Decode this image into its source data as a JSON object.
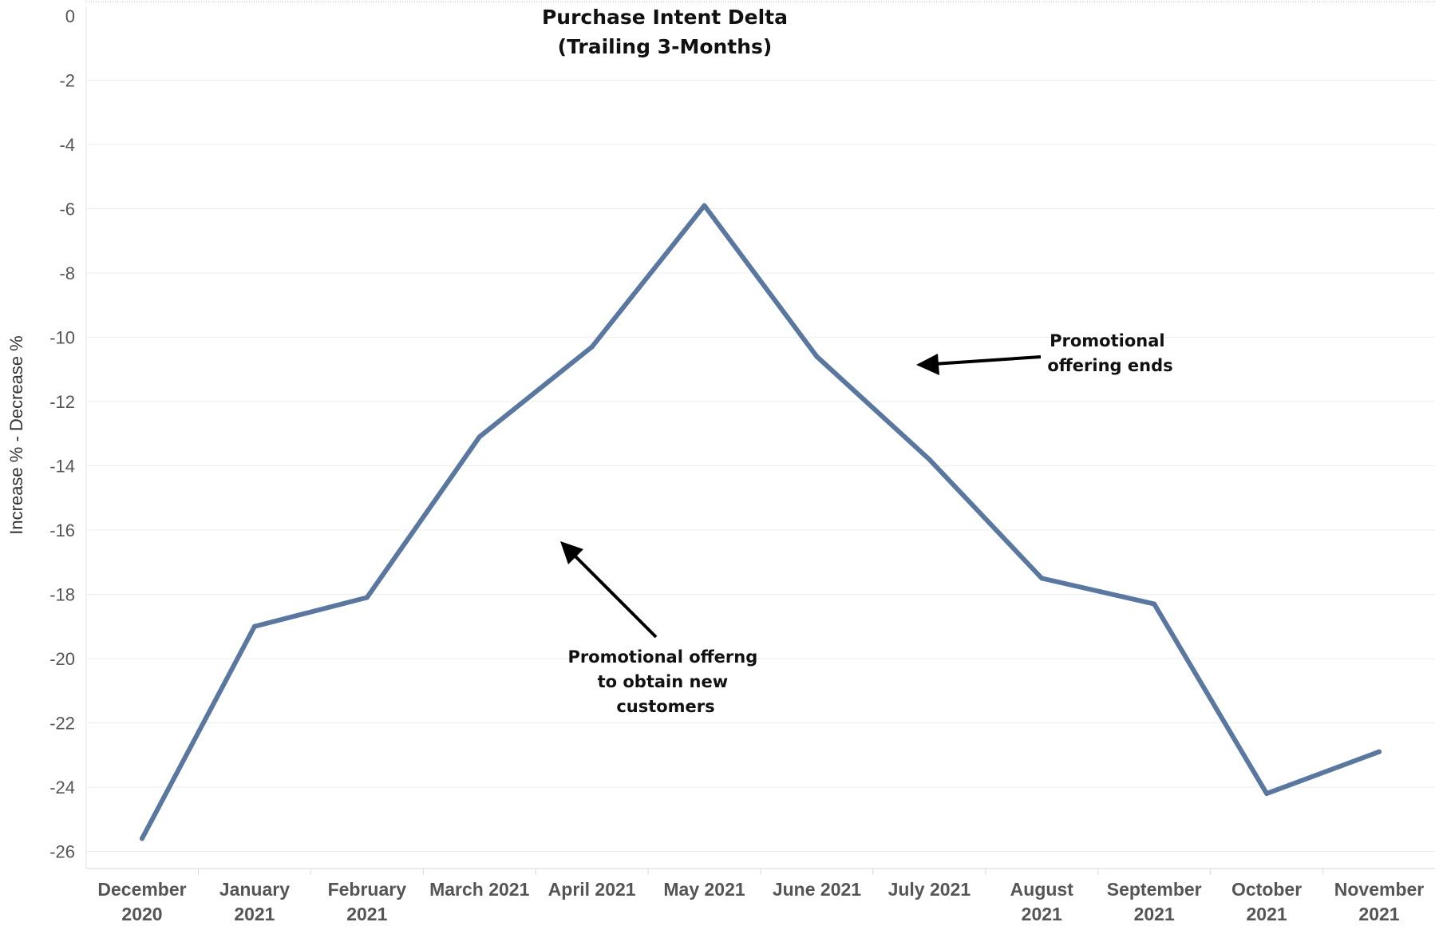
{
  "chart_data": {
    "type": "line",
    "title": "Purchase Intent Delta",
    "subtitle": "(Trailing 3-Months)",
    "xlabel": "",
    "ylabel": "Increase % - Decrease %",
    "ylim": [
      -27.0,
      0
    ],
    "yticks": [
      0,
      -2,
      -4,
      -6,
      -8,
      -10,
      -12,
      -14,
      -16,
      -18,
      -20,
      -22,
      -24,
      -26
    ],
    "categories": [
      [
        "December",
        "2020"
      ],
      [
        "January",
        "2021"
      ],
      [
        "February",
        "2021"
      ],
      [
        "March 2021"
      ],
      [
        "April 2021"
      ],
      [
        "May 2021"
      ],
      [
        "June 2021"
      ],
      [
        "July 2021"
      ],
      [
        "August",
        "2021"
      ],
      [
        "September",
        "2021"
      ],
      [
        "October",
        "2021"
      ],
      [
        "November",
        "2021"
      ]
    ],
    "series": [
      {
        "name": "",
        "color": "#5a77a0",
        "values": [
          -25.6,
          -19.0,
          -18.1,
          -13.1,
          -10.3,
          -5.9,
          -10.6,
          -13.8,
          -17.5,
          -18.3,
          -24.2,
          -22.9
        ]
      }
    ],
    "grid": true,
    "annotations": [
      {
        "lines": [
          "Promotional",
          "offering ends"
        ]
      },
      {
        "lines": [
          "Promotional offerng",
          "to obtain new",
          "customers"
        ]
      }
    ]
  }
}
